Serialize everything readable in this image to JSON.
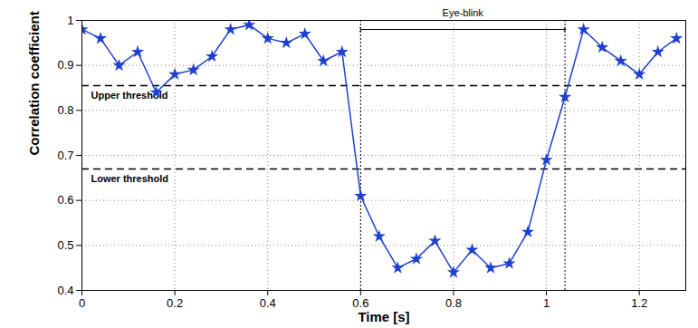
{
  "chart_data": {
    "type": "line",
    "x_label": "Time [s]",
    "y_label": "Correlation coefficient",
    "x": [
      0,
      0.04,
      0.08,
      0.12,
      0.16,
      0.2,
      0.24,
      0.28,
      0.32,
      0.36,
      0.4,
      0.44,
      0.48,
      0.52,
      0.56,
      0.6,
      0.64,
      0.68,
      0.72,
      0.76,
      0.8,
      0.84,
      0.88,
      0.92,
      0.96,
      1.0,
      1.04,
      1.08,
      1.12,
      1.16,
      1.2,
      1.24,
      1.28
    ],
    "values": [
      0.98,
      0.96,
      0.9,
      0.93,
      0.84,
      0.88,
      0.89,
      0.92,
      0.98,
      0.99,
      0.96,
      0.95,
      0.97,
      0.91,
      0.93,
      0.61,
      0.52,
      0.45,
      0.47,
      0.51,
      0.44,
      0.49,
      0.45,
      0.46,
      0.53,
      0.69,
      0.83,
      0.98,
      0.94,
      0.91,
      0.88,
      0.93,
      0.96
    ],
    "color": "#1f3fd0",
    "marker": "star",
    "xlim": [
      0,
      1.3
    ],
    "xticks": [
      0,
      0.2,
      0.4,
      0.6,
      0.8,
      1,
      1.2
    ],
    "ylim": [
      0.4,
      1
    ],
    "yticks": [
      0.4,
      0.5,
      0.6,
      0.7,
      0.8,
      0.9,
      1
    ],
    "grid": true,
    "thresholds": [
      {
        "label": "Upper threshold",
        "value": 0.855
      },
      {
        "label": "Lower threshold",
        "value": 0.67
      }
    ],
    "interval": {
      "label": "Eye-blink",
      "start": 0.6,
      "end": 1.04
    }
  }
}
